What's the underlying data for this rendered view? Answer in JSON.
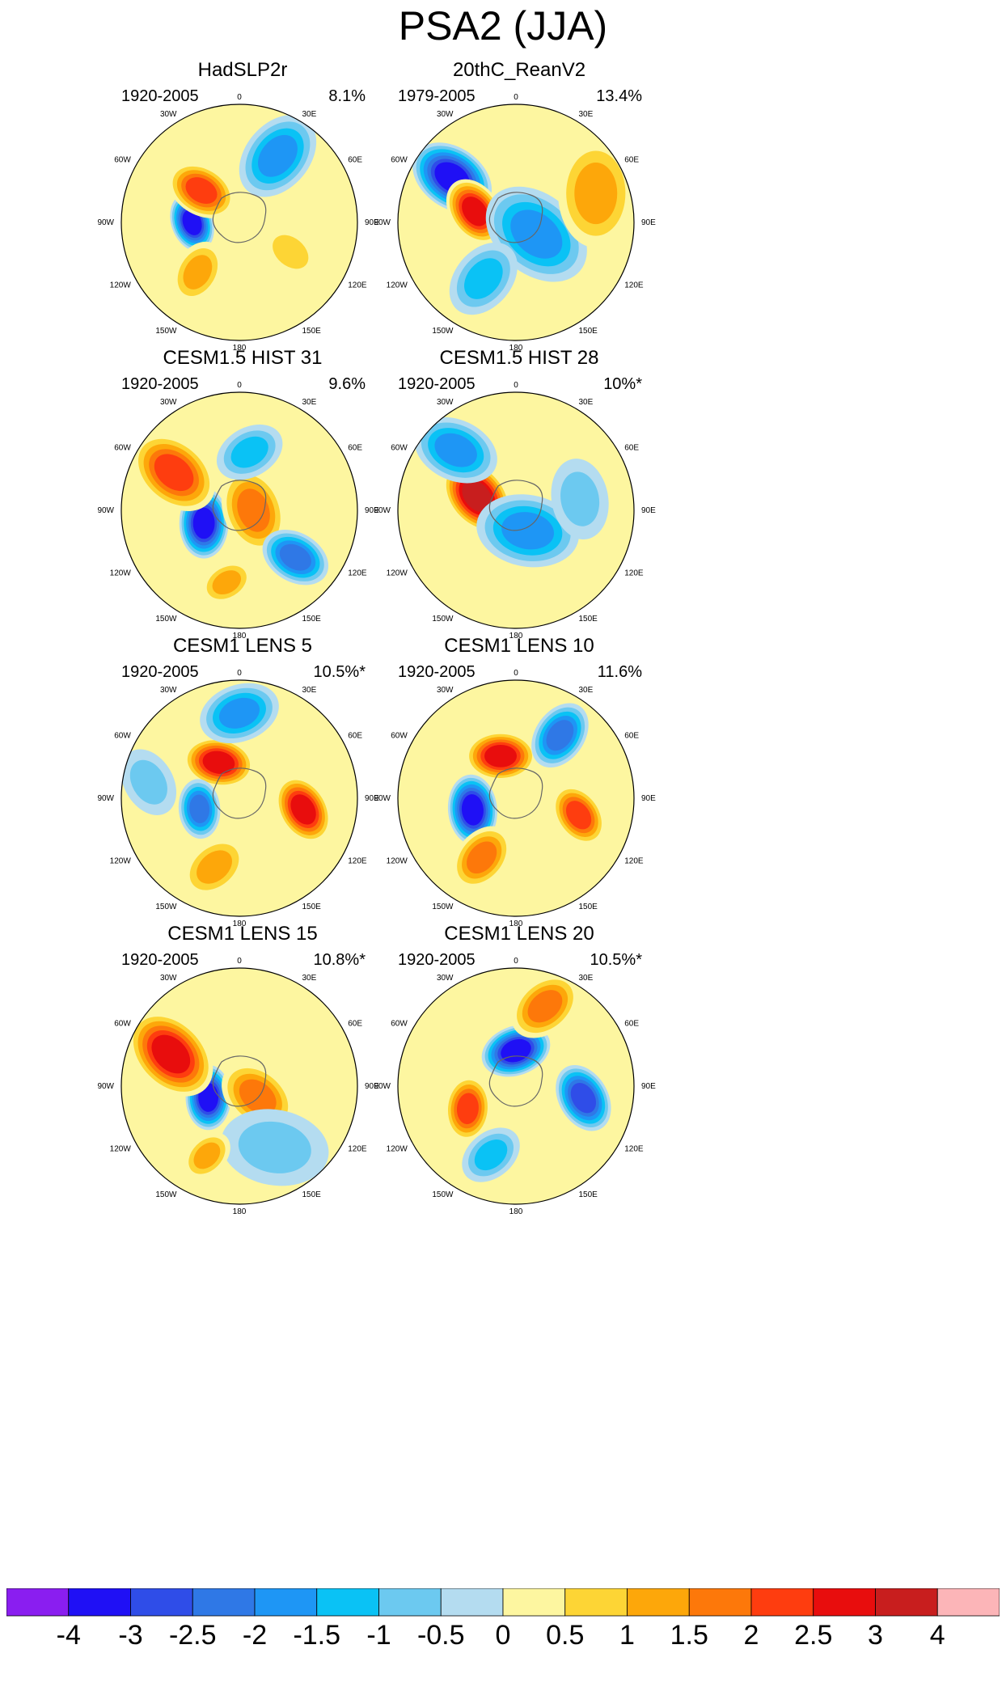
{
  "title": "PSA2 (JJA)",
  "chart_data": {
    "type": "heatmap",
    "projection": "south-polar-stereographic",
    "longitude_labels": [
      "0",
      "30E",
      "60E",
      "90E",
      "120E",
      "150E",
      "180",
      "150W",
      "120W",
      "90W",
      "60W",
      "30W"
    ],
    "colorbar": {
      "labels": [
        "-4",
        "-3",
        "-2.5",
        "-2",
        "-1.5",
        "-1",
        "-0.5",
        "0",
        "0.5",
        "1",
        "1.5",
        "2",
        "2.5",
        "3",
        "4"
      ],
      "colors": [
        "#8a1ef0",
        "#1f10f5",
        "#2f4de8",
        "#2f78e6",
        "#1e96f5",
        "#0ac2f5",
        "#6cc9f0",
        "#b4dcf0",
        "#fdf6a0",
        "#fdd535",
        "#fda70a",
        "#fd780a",
        "#fe3d0f",
        "#e80d0d",
        "#c81e1e",
        "#fcb5b8"
      ]
    },
    "panels": [
      {
        "title": "HadSLP2r",
        "period": "1920-2005",
        "variance": "8.1%",
        "features": [
          {
            "value": -3,
            "lon": 270,
            "r": 0.4,
            "size": 0.22
          },
          {
            "value": 2,
            "lon": 230,
            "r": 0.42,
            "size": 0.26
          },
          {
            "value": -1.5,
            "lon": 150,
            "r": 0.65,
            "size": 0.34
          },
          {
            "value": 1,
            "lon": 320,
            "r": 0.55,
            "size": 0.24
          },
          {
            "value": 0.5,
            "lon": 60,
            "r": 0.5,
            "size": 0.22
          }
        ]
      },
      {
        "title": "20thC_ReanV2",
        "period": "1979-2005",
        "variance": "13.4%",
        "features": [
          {
            "value": -3,
            "lon": 235,
            "r": 0.66,
            "size": 0.32
          },
          {
            "value": 2.5,
            "lon": 255,
            "r": 0.36,
            "size": 0.26
          },
          {
            "value": -1.5,
            "lon": 60,
            "r": 0.2,
            "size": 0.42
          },
          {
            "value": 1,
            "lon": 110,
            "r": 0.72,
            "size": 0.4
          },
          {
            "value": -1,
            "lon": 330,
            "r": 0.55,
            "size": 0.3
          }
        ]
      },
      {
        "title": "CESM1.5 HIST 31",
        "period": "1920-2005",
        "variance": "9.6%",
        "features": [
          {
            "value": -3,
            "lon": 290,
            "r": 0.32,
            "size": 0.26
          },
          {
            "value": 2,
            "lon": 240,
            "r": 0.64,
            "size": 0.34
          },
          {
            "value": 1.5,
            "lon": 90,
            "r": 0.12,
            "size": 0.32
          },
          {
            "value": -2,
            "lon": 50,
            "r": 0.62,
            "size": 0.26
          },
          {
            "value": -1,
            "lon": 170,
            "r": 0.5,
            "size": 0.26
          },
          {
            "value": 1,
            "lon": 350,
            "r": 0.62,
            "size": 0.2
          }
        ]
      },
      {
        "title": "CESM1.5 HIST 28",
        "period": "1920-2005",
        "variance": "10%*",
        "features": [
          {
            "value": 3,
            "lon": 250,
            "r": 0.35,
            "size": 0.3
          },
          {
            "value": -1.5,
            "lon": 225,
            "r": 0.72,
            "size": 0.32
          },
          {
            "value": -1.5,
            "lon": 30,
            "r": 0.2,
            "size": 0.38
          },
          {
            "value": -0.5,
            "lon": 100,
            "r": 0.55,
            "size": 0.3
          }
        ]
      },
      {
        "title": "CESM1 LENS 5",
        "period": "1920-2005",
        "variance": "10.5%*",
        "features": [
          {
            "value": 2.5,
            "lon": 80,
            "r": 0.55,
            "size": 0.26
          },
          {
            "value": 2.5,
            "lon": 210,
            "r": 0.35,
            "size": 0.26
          },
          {
            "value": -2,
            "lon": 285,
            "r": 0.35,
            "size": 0.22
          },
          {
            "value": -1.5,
            "lon": 180,
            "r": 0.72,
            "size": 0.3
          },
          {
            "value": 1,
            "lon": 340,
            "r": 0.62,
            "size": 0.26
          },
          {
            "value": -0.5,
            "lon": 260,
            "r": 0.78,
            "size": 0.26
          }
        ]
      },
      {
        "title": "CESM1 LENS 10",
        "period": "1920-2005",
        "variance": "11.6%",
        "features": [
          {
            "value": -3,
            "lon": 285,
            "r": 0.38,
            "size": 0.26
          },
          {
            "value": 2.5,
            "lon": 200,
            "r": 0.38,
            "size": 0.26
          },
          {
            "value": 2,
            "lon": 75,
            "r": 0.55,
            "size": 0.24
          },
          {
            "value": -2,
            "lon": 145,
            "r": 0.65,
            "size": 0.26
          },
          {
            "value": 1.5,
            "lon": 330,
            "r": 0.58,
            "size": 0.26
          }
        ]
      },
      {
        "title": "CESM1 LENS 15",
        "period": "1920-2005",
        "variance": "10.8%*",
        "features": [
          {
            "value": -3,
            "lon": 290,
            "r": 0.28,
            "size": 0.24
          },
          {
            "value": 2.5,
            "lon": 245,
            "r": 0.64,
            "size": 0.36
          },
          {
            "value": 1.5,
            "lon": 60,
            "r": 0.18,
            "size": 0.3
          },
          {
            "value": -0.5,
            "lon": 30,
            "r": 0.6,
            "size": 0.4
          },
          {
            "value": 1,
            "lon": 335,
            "r": 0.65,
            "size": 0.2
          }
        ]
      },
      {
        "title": "CESM1 LENS 20",
        "period": "1920-2005",
        "variance": "10.5%*",
        "features": [
          {
            "value": -3,
            "lon": 180,
            "r": 0.3,
            "size": 0.26
          },
          {
            "value": -2.5,
            "lon": 80,
            "r": 0.58,
            "size": 0.26
          },
          {
            "value": 2,
            "lon": 295,
            "r": 0.45,
            "size": 0.24
          },
          {
            "value": 1.5,
            "lon": 160,
            "r": 0.72,
            "size": 0.28
          },
          {
            "value": -1,
            "lon": 340,
            "r": 0.62,
            "size": 0.24
          }
        ]
      }
    ]
  }
}
